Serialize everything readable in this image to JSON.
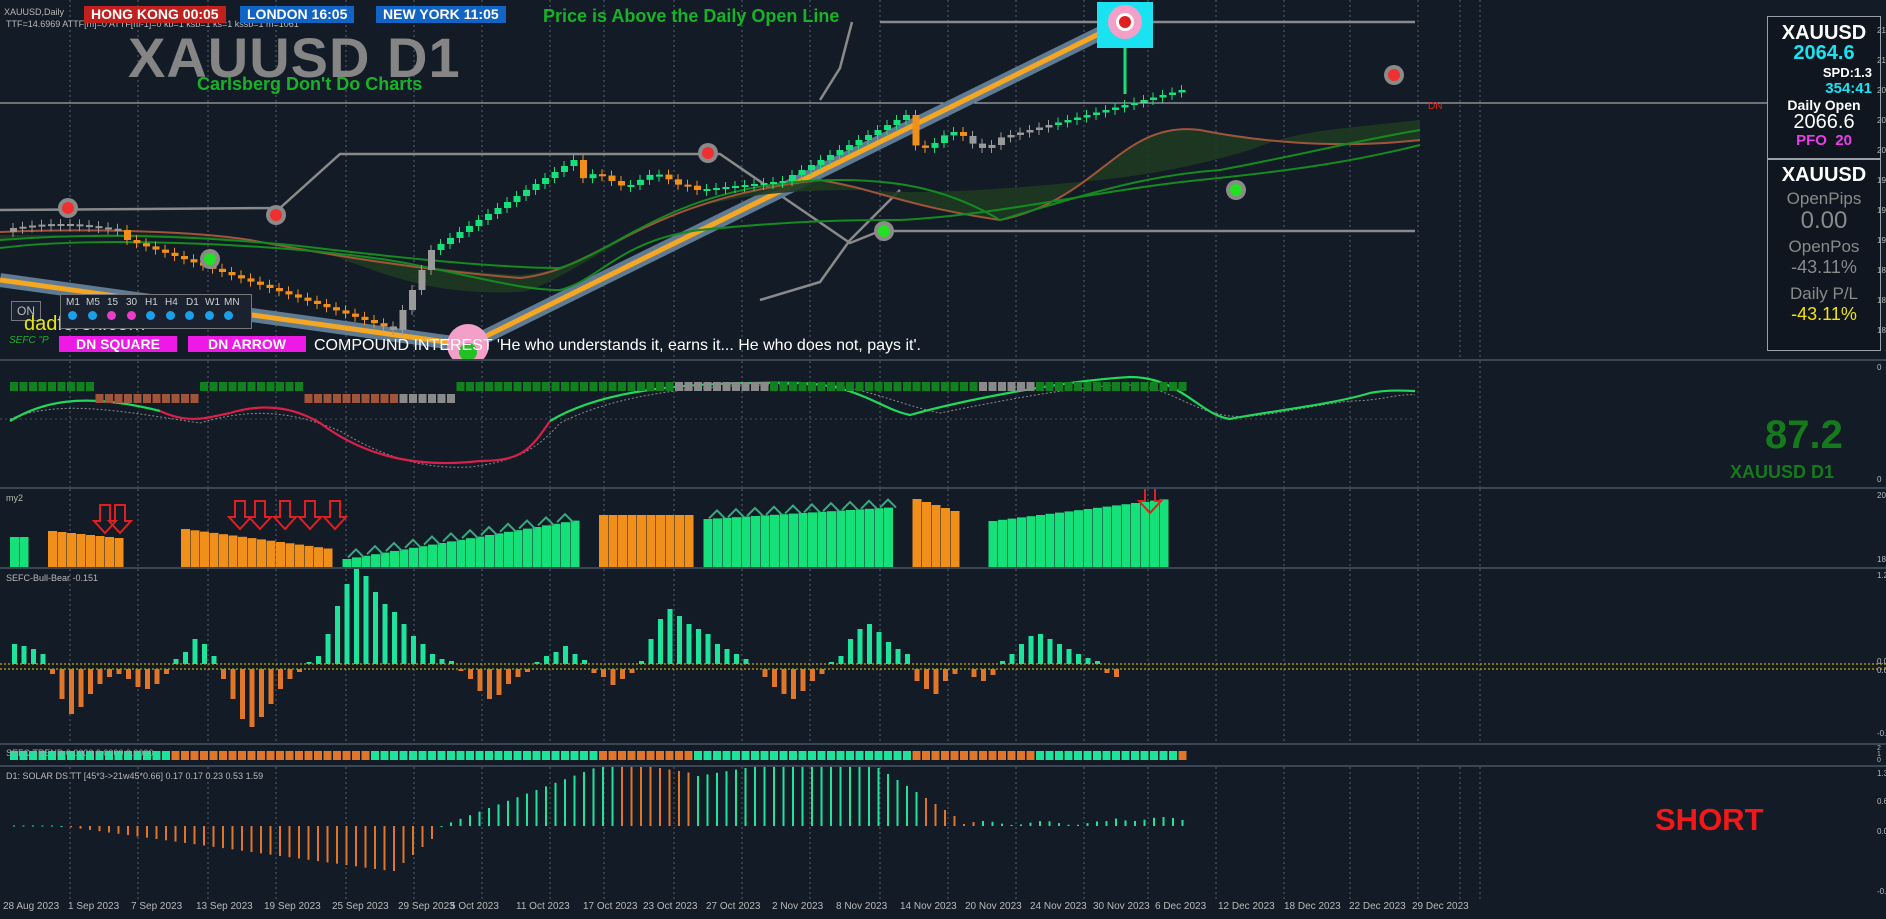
{
  "window": {
    "title": "XAUUSD,Daily"
  },
  "info_line": "TTF=14.6969 ATTF[m]=0 ATTF[m-1]=0 kb=1 ksb=1 ks=1 kssb=1 m=1061",
  "clocks": [
    {
      "label": "HONG KONG 00:05",
      "color": "#c0211f"
    },
    {
      "label": "LONDON  16:05",
      "color": "#1264c4"
    },
    {
      "label": "NEW YORK  11:05",
      "color": "#1264c4"
    }
  ],
  "status_message": "Price is Above the Daily Open Line",
  "symbol_title": "XAUUSD D1",
  "symbol_subtitle": "Carlsberg Don't Do Charts",
  "on_button": "ON",
  "brand_text": "dadforex.com",
  "sefc_text": "SEFC \"P",
  "timeframes": [
    "M1",
    "M5",
    "15",
    "30",
    "H1",
    "H4",
    "D1",
    "W1",
    "MN"
  ],
  "timeframe_dot_colors": [
    "#1aa0e8",
    "#1aa0e8",
    "#e83ec8",
    "#e83ec8",
    "#1aa0e8",
    "#1aa0e8",
    "#1aa0e8",
    "#1aa0e8",
    "#1aa0e8"
  ],
  "buttons": {
    "dn_square": "DN SQUARE",
    "dn_arrow": "DN ARROW"
  },
  "compound_text": "COMPOUND INTEREST  'He who understands it, earns it... He who does not, pays it'.",
  "dn_label": "DN",
  "right_panel": {
    "symbol": "XAUUSD",
    "price": "2064.6",
    "spread": "SPD:1.3",
    "timer": "354:41",
    "daily_open_label": "Daily Open",
    "daily_open_value": "2066.6",
    "pfo_label": "PFO",
    "pfo_value": "20",
    "symbol2": "XAUUSD",
    "open_pips_label": "OpenPips",
    "open_pips_value": "0.00",
    "open_pos_label": "OpenPos",
    "open_pos_value": "-43.11%",
    "daily_pl_label": "Daily P/L",
    "daily_pl_value": "-43.11%"
  },
  "oscillator": {
    "value": "87.2",
    "symbol": "XAUUSD D1"
  },
  "pane_labels": {
    "my2": "my2",
    "bull_bear": "SEFC-Bull-Bear -0.151",
    "trend": "SEFC TREND 0.0000 0.0000 0.0000",
    "solar": "D1: SOLAR DS TT [45*3->21w45*0.66] 0.17 0.17 0.23 0.53 1.59"
  },
  "signal": "SHORT",
  "x_axis_labels": [
    "28 Aug 2023",
    "1 Sep 2023",
    "7 Sep 2023",
    "13 Sep 2023",
    "19 Sep 2023",
    "25 Sep 2023",
    "29 Sep 2023",
    "5 Oct 2023",
    "11 Oct 2023",
    "17 Oct 2023",
    "23 Oct 2023",
    "27 Oct 2023",
    "2 Nov 2023",
    "8 Nov 2023",
    "14 Nov 2023",
    "20 Nov 2023",
    "24 Nov 2023",
    "30 Nov 2023",
    "6 Dec 2023",
    "12 Dec 2023",
    "18 Dec 2023",
    "22 Dec 2023",
    "29 Dec 2023"
  ],
  "y_axis_labels": {
    "main": [
      "21",
      "21",
      "20",
      "20",
      "20",
      "19",
      "19",
      "19",
      "18",
      "18",
      "18"
    ],
    "osc": [
      "0",
      "0"
    ],
    "my2": [
      "20",
      "18"
    ],
    "bull_bear": [
      "1.2",
      "0.0",
      "0.0",
      "-0.9"
    ],
    "trend": [
      "2",
      "1",
      "0"
    ],
    "solar": [
      "1.3",
      "0.6",
      "0.0",
      "-0.3"
    ]
  },
  "colors": {
    "bg": "#131b26",
    "bull": "#16e07a",
    "bear": "#f0901a",
    "neutral": "#9a9a9a",
    "bull_bar": "#1ee39a",
    "bear_bar": "#e0762a"
  }
}
